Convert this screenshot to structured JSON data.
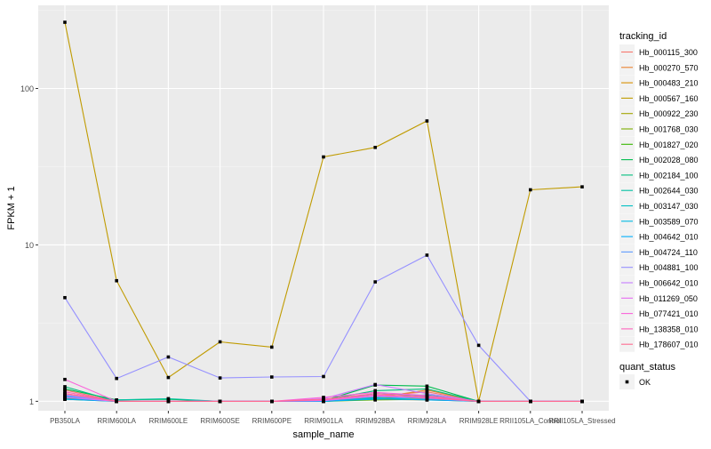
{
  "chart_data": {
    "type": "line",
    "xlabel": "sample_name",
    "ylabel": "FPKM + 1",
    "y_scale": "log10",
    "ylim": [
      0.87,
      340
    ],
    "y_ticks": [
      1,
      10,
      100
    ],
    "y_tick_labels": [
      "1",
      "10",
      "100"
    ],
    "grid": true,
    "legend_position": "right",
    "categories": [
      "PB350LA",
      "RRIM600LA",
      "RRIM600LE",
      "RRIM600SE",
      "RRIM600PE",
      "RRIM901LA",
      "RRIM928BA",
      "RRIM928LA",
      "RRIM928LE",
      "RRII105LA_Control",
      "RRII105LA_Stressed"
    ],
    "series": [
      {
        "name": "Hb_000115_300",
        "color": "#F8766D",
        "values": [
          1.18,
          1,
          1,
          1,
          1,
          1.02,
          1.08,
          1.15,
          1,
          1,
          1
        ]
      },
      {
        "name": "Hb_000270_570",
        "color": "#EA8331",
        "values": [
          1.12,
          1,
          1,
          1,
          1,
          1,
          1.05,
          1.18,
          1,
          1,
          1
        ]
      },
      {
        "name": "Hb_000483_210",
        "color": "#D89000",
        "values": [
          1.05,
          1,
          1,
          1,
          1,
          1.01,
          1.03,
          1.02,
          1,
          1,
          1
        ]
      },
      {
        "name": "Hb_000567_160",
        "color": "#C09B00",
        "values": [
          265,
          5.9,
          1.42,
          2.4,
          2.22,
          36.5,
          42,
          62,
          1,
          22.5,
          23.5
        ]
      },
      {
        "name": "Hb_000922_230",
        "color": "#A3A500",
        "values": [
          1.03,
          1,
          1,
          1,
          1,
          1,
          1.04,
          1.05,
          1,
          1,
          1
        ]
      },
      {
        "name": "Hb_001768_030",
        "color": "#7CAE00",
        "values": [
          1.04,
          1,
          1,
          1,
          1,
          1,
          1.02,
          1.03,
          1,
          1,
          1
        ]
      },
      {
        "name": "Hb_001827_020",
        "color": "#39B600",
        "values": [
          1.06,
          1,
          1,
          1,
          1,
          1.01,
          1.06,
          1.04,
          1,
          1,
          1
        ]
      },
      {
        "name": "Hb_002028_080",
        "color": "#00BB4E",
        "values": [
          1.2,
          1.02,
          1.03,
          1,
          1,
          1.01,
          1.27,
          1.25,
          1,
          1,
          1
        ]
      },
      {
        "name": "Hb_002184_100",
        "color": "#00BF7D",
        "values": [
          1.24,
          1,
          1,
          1,
          1,
          1.02,
          1.17,
          1.2,
          1,
          1,
          1
        ]
      },
      {
        "name": "Hb_002644_030",
        "color": "#00C1A3",
        "values": [
          1.07,
          1.02,
          1.04,
          1,
          1,
          1.02,
          1.05,
          1.1,
          1,
          1,
          1
        ]
      },
      {
        "name": "Hb_003147_030",
        "color": "#00BFC4",
        "values": [
          1.05,
          1,
          1,
          1,
          1,
          1,
          1.03,
          1.06,
          1,
          1,
          1
        ]
      },
      {
        "name": "Hb_003589_070",
        "color": "#00B9E3",
        "values": [
          1.09,
          1,
          1,
          1,
          1,
          1,
          1.12,
          1.08,
          1,
          1,
          1
        ]
      },
      {
        "name": "Hb_004642_010",
        "color": "#00ADFA",
        "values": [
          1.03,
          1,
          1,
          1,
          1,
          1,
          1.04,
          1.02,
          1,
          1,
          1
        ]
      },
      {
        "name": "Hb_004724_110",
        "color": "#619CFF",
        "values": [
          1.08,
          1,
          1,
          1,
          1,
          1.01,
          1.07,
          1.04,
          1,
          1,
          1
        ]
      },
      {
        "name": "Hb_004881_100",
        "color": "#9590FF",
        "values": [
          4.6,
          1.4,
          1.92,
          1.41,
          1.43,
          1.44,
          5.8,
          8.6,
          2.28,
          1,
          1
        ]
      },
      {
        "name": "Hb_006642_010",
        "color": "#C77CFF",
        "values": [
          1.1,
          1,
          1,
          1,
          1,
          1.04,
          1.28,
          1.12,
          1,
          1,
          1
        ]
      },
      {
        "name": "Hb_011269_050",
        "color": "#E76BF3",
        "values": [
          1.06,
          1,
          1,
          1,
          1,
          1.01,
          1.08,
          1.06,
          1,
          1,
          1
        ]
      },
      {
        "name": "Hb_077421_010",
        "color": "#FA62DB",
        "values": [
          1.38,
          1,
          1,
          1,
          1,
          1.06,
          1.14,
          1.09,
          1,
          1,
          1
        ]
      },
      {
        "name": "Hb_138358_010",
        "color": "#FF62BC",
        "values": [
          1.15,
          1,
          1,
          1,
          1,
          1.02,
          1.1,
          1.05,
          1,
          1,
          1
        ]
      },
      {
        "name": "Hb_178607_010",
        "color": "#FF6C91",
        "values": [
          1.12,
          1,
          1,
          1,
          1,
          1.03,
          1.12,
          1.07,
          1,
          1,
          1
        ]
      }
    ],
    "legend": {
      "title": "tracking_id",
      "shape_title": "quant_status",
      "shape_items": [
        "OK"
      ]
    }
  }
}
